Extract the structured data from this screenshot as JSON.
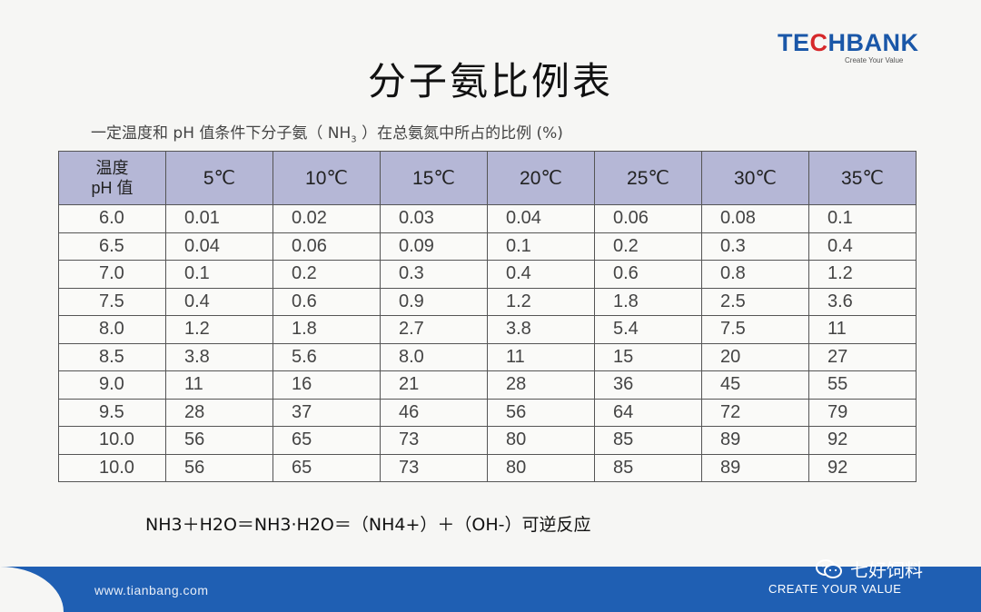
{
  "logo": {
    "word_pre": "TE",
    "word_c": "C",
    "word_post": "HBANK",
    "tagline": "Create Your Value"
  },
  "title": "分子氨比例表",
  "subtitle": {
    "pre": "一定温度和 pH 值条件下分子氨（ NH",
    "sub": "3",
    "post": " ）在总氨氮中所占的比例 (%)"
  },
  "table": {
    "corner_top": "温度",
    "corner_bottom": "pH 值",
    "columns": [
      "5℃",
      "10℃",
      "15℃",
      "20℃",
      "25℃",
      "30℃",
      "35℃"
    ],
    "rows": [
      {
        "ph": "6.0",
        "values": [
          "0.01",
          "0.02",
          "0.03",
          "0.04",
          "0.06",
          "0.08",
          "0.1"
        ]
      },
      {
        "ph": "6.5",
        "values": [
          "0.04",
          "0.06",
          "0.09",
          "0.1",
          "0.2",
          "0.3",
          "0.4"
        ]
      },
      {
        "ph": "7.0",
        "values": [
          "0.1",
          "0.2",
          "0.3",
          "0.4",
          "0.6",
          "0.8",
          "1.2"
        ]
      },
      {
        "ph": "7.5",
        "values": [
          "0.4",
          "0.6",
          "0.9",
          "1.2",
          "1.8",
          "2.5",
          "3.6"
        ]
      },
      {
        "ph": "8.0",
        "values": [
          "1.2",
          "1.8",
          "2.7",
          "3.8",
          "5.4",
          "7.5",
          "11"
        ]
      },
      {
        "ph": "8.5",
        "values": [
          "3.8",
          "5.6",
          "8.0",
          "11",
          "15",
          "20",
          "27"
        ]
      },
      {
        "ph": "9.0",
        "values": [
          "11",
          "16",
          "21",
          "28",
          "36",
          "45",
          "55"
        ]
      },
      {
        "ph": "9.5",
        "values": [
          "28",
          "37",
          "46",
          "56",
          "64",
          "72",
          "79"
        ]
      },
      {
        "ph": "10.0",
        "values": [
          "56",
          "65",
          "73",
          "80",
          "85",
          "89",
          "92"
        ]
      },
      {
        "ph": "10.0",
        "values": [
          "56",
          "65",
          "73",
          "80",
          "85",
          "89",
          "92"
        ]
      }
    ]
  },
  "equation": "NH3＋H2O＝NH3·H2O＝（NH4+）＋（OH-）可逆反应",
  "footer": {
    "url": "www.tianbang.com",
    "slogan": "CREATE YOUR VALUE"
  },
  "watermark": {
    "icon": "wechat-icon",
    "text": "七好饲料"
  },
  "colors": {
    "header_bg": "#b5b7d6",
    "footer_bg": "#1f5fb3",
    "logo_blue": "#1a57a8",
    "logo_red": "#d6282a"
  }
}
